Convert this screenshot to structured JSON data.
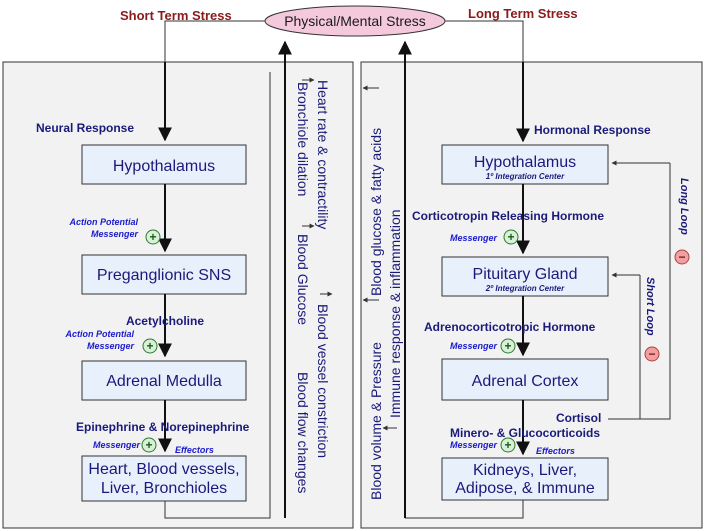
{
  "top": {
    "center": "Physical/Mental Stress",
    "left": "Short Term Stress",
    "right": "Long Term Stress"
  },
  "left_panel": {
    "header": "Neural Response",
    "boxes": [
      "Hypothalamus",
      "Preganglionic SNS",
      "Adrenal Medulla"
    ],
    "effectors_box": [
      "Heart, Blood vessels,",
      "Liver, Bronchioles"
    ],
    "msg1": [
      "Action Potential",
      "Messenger"
    ],
    "msg2_chem": "Acetylcholine",
    "msg2": [
      "Action Potential",
      "Messenger"
    ],
    "msg3_chem": "Epinephrine & Norepinephrine",
    "msg3": "Messenger",
    "effectors": "Effectors",
    "effects": [
      "Heart rate & contractility",
      "Bronchiole dilation",
      "Blood vessel constriction",
      "Blood Glucose",
      "Blood flow changes"
    ]
  },
  "right_panel": {
    "header": "Hormonal Response",
    "boxes": [
      {
        "title": "Hypothalamus",
        "sub": "1º Integration Center"
      },
      {
        "title": "Pituitary Gland",
        "sub": "2º Integration Center"
      },
      {
        "title": "Adrenal Cortex",
        "sub": ""
      }
    ],
    "effectors_box": [
      "Kidneys, Liver,",
      "Adipose, & Immune"
    ],
    "hormone1": "Corticotropin Releasing Hormone",
    "hormone2": "Adrenocorticotropic Hormone",
    "cortisol": "Cortisol",
    "hormone3": "Minero- & Glucocorticoids",
    "messenger": "Messenger",
    "effectors": "Effectors",
    "long_loop": "Long Loop",
    "short_loop": "Short Loop",
    "effects": [
      "Blood glucose & fatty acids",
      "Immune response & inflammation",
      "Blood volume & Pressure"
    ]
  },
  "signs": {
    "plus": "+",
    "minus": "−"
  },
  "colors": {
    "stress_text": "#8b1a1a",
    "box_fill": "#e8f0fc",
    "ellipse_fill": "#f4c9dc",
    "plus": "#2a7a2a",
    "minus": "#e06060"
  }
}
